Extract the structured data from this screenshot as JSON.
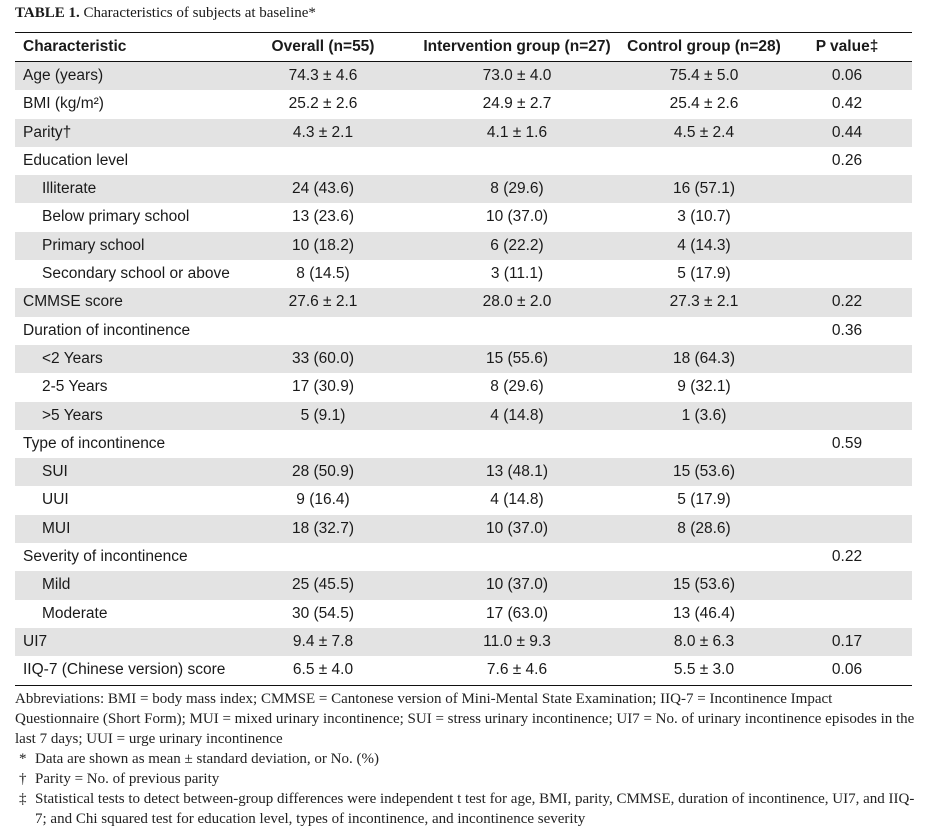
{
  "caption": {
    "label": "TABLE 1.",
    "title": "Characteristics of subjects at baseline*"
  },
  "table": {
    "headers": [
      "Characteristic",
      "Overall (n=55)",
      "Intervention group (n=27)",
      "Control group (n=28)",
      "P value‡"
    ],
    "rows": [
      {
        "label": "Age (years)",
        "indent": false,
        "cells": [
          "74.3 ± 4.6",
          "73.0 ± 4.0",
          "75.4 ± 5.0",
          "0.06"
        ]
      },
      {
        "label": "BMI (kg/m²)",
        "indent": false,
        "cells": [
          "25.2 ± 2.6",
          "24.9 ± 2.7",
          "25.4 ± 2.6",
          "0.42"
        ]
      },
      {
        "label": "Parity†",
        "indent": false,
        "cells": [
          "4.3 ± 2.1",
          "4.1 ± 1.6",
          "4.5 ± 2.4",
          "0.44"
        ]
      },
      {
        "label": "Education level",
        "indent": false,
        "cells": [
          "",
          "",
          "",
          "0.26"
        ]
      },
      {
        "label": "Illiterate",
        "indent": true,
        "cells": [
          "24 (43.6)",
          "8 (29.6)",
          "16 (57.1)",
          ""
        ]
      },
      {
        "label": "Below primary school",
        "indent": true,
        "cells": [
          "13 (23.6)",
          "10 (37.0)",
          "3 (10.7)",
          ""
        ]
      },
      {
        "label": "Primary school",
        "indent": true,
        "cells": [
          "10 (18.2)",
          "6 (22.2)",
          "4 (14.3)",
          ""
        ]
      },
      {
        "label": "Secondary school or above",
        "indent": true,
        "cells": [
          "8 (14.5)",
          "3 (11.1)",
          "5 (17.9)",
          ""
        ]
      },
      {
        "label": "CMMSE score",
        "indent": false,
        "cells": [
          "27.6 ± 2.1",
          "28.0 ± 2.0",
          "27.3 ± 2.1",
          "0.22"
        ]
      },
      {
        "label": "Duration of incontinence",
        "indent": false,
        "cells": [
          "",
          "",
          "",
          "0.36"
        ]
      },
      {
        "label": "<2 Years",
        "indent": true,
        "cells": [
          "33 (60.0)",
          "15 (55.6)",
          "18 (64.3)",
          ""
        ]
      },
      {
        "label": "2-5 Years",
        "indent": true,
        "cells": [
          "17 (30.9)",
          "8 (29.6)",
          "9 (32.1)",
          ""
        ]
      },
      {
        "label": ">5 Years",
        "indent": true,
        "cells": [
          "5 (9.1)",
          "4 (14.8)",
          "1 (3.6)",
          ""
        ]
      },
      {
        "label": "Type of incontinence",
        "indent": false,
        "cells": [
          "",
          "",
          "",
          "0.59"
        ]
      },
      {
        "label": "SUI",
        "indent": true,
        "cells": [
          "28 (50.9)",
          "13 (48.1)",
          "15 (53.6)",
          ""
        ]
      },
      {
        "label": "UUI",
        "indent": true,
        "cells": [
          "9 (16.4)",
          "4 (14.8)",
          "5 (17.9)",
          ""
        ]
      },
      {
        "label": "MUI",
        "indent": true,
        "cells": [
          "18 (32.7)",
          "10 (37.0)",
          "8 (28.6)",
          ""
        ]
      },
      {
        "label": "Severity of incontinence",
        "indent": false,
        "cells": [
          "",
          "",
          "",
          "0.22"
        ]
      },
      {
        "label": "Mild",
        "indent": true,
        "cells": [
          "25 (45.5)",
          "10 (37.0)",
          "15 (53.6)",
          ""
        ]
      },
      {
        "label": "Moderate",
        "indent": true,
        "cells": [
          "30 (54.5)",
          "17 (63.0)",
          "13 (46.4)",
          ""
        ]
      },
      {
        "label": "UI7",
        "indent": false,
        "cells": [
          "9.4 ± 7.8",
          "11.0 ± 9.3",
          "8.0 ± 6.3",
          "0.17"
        ]
      },
      {
        "label": "IIQ-7 (Chinese version) score",
        "indent": false,
        "cells": [
          "6.5 ± 4.0",
          "7.6 ± 4.6",
          "5.5 ± 3.0",
          "0.06"
        ]
      }
    ]
  },
  "notes": {
    "abbreviations": "Abbreviations: BMI = body mass index; CMMSE = Cantonese version of Mini-Mental State Examination; IIQ-7 = Incontinence Impact Questionnaire (Short Form); MUI = mixed urinary incontinence; SUI = stress urinary incontinence; UI7 = No. of urinary incontinence episodes in the last 7 days; UUI = urge urinary incontinence",
    "footnotes": [
      {
        "symbol": "*",
        "text": "Data are shown as mean ± standard deviation, or No. (%)"
      },
      {
        "symbol": "†",
        "text": "Parity = No. of previous parity"
      },
      {
        "symbol": "‡",
        "text": "Statistical tests to detect between-group differences were independent t test for age, BMI, parity, CMMSE, duration of incontinence, UI7, and IIQ-7; and Chi squared test for education level, types of incontinence, and incontinence severity"
      }
    ]
  }
}
